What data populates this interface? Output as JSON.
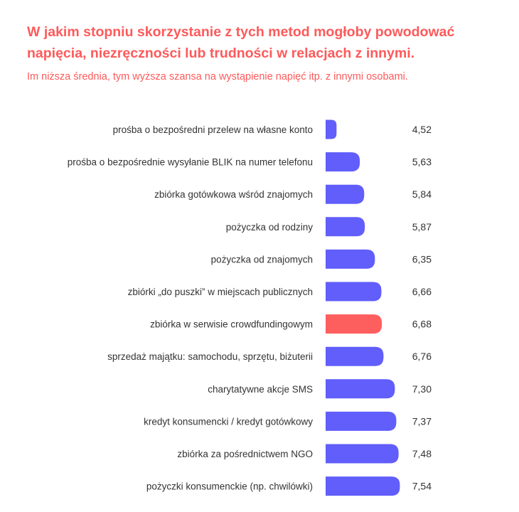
{
  "chart_data": {
    "type": "bar",
    "orientation": "horizontal",
    "title": "W jakim stopniu skorzystanie z tych metod mogłoby powodować napięcia, niezręczności lub trudności w relacjach z innymi.",
    "subtitle": "Im niższa średnia, tym wyższa szansa na wystąpienie napięć itp. z innymi osobami.",
    "xlim": [
      4,
      8
    ],
    "categories": [
      "prośba o bezpośredni przelew na własne konto",
      "prośba o bezpośrednie wysyłanie BLIK na numer telefonu",
      "zbiórka gotówkowa wśród znajomych",
      "pożyczka od rodziny",
      "pożyczka od znajomych",
      "zbiórki „do puszki” w miejscach publicznych",
      "zbiórka w serwisie crowdfundingowym",
      "sprzedaż majątku: samochodu, sprzętu, biżuterii",
      "charytatywne akcje SMS",
      "kredyt konsumencki / kredyt gotówkowy",
      "zbiórka za pośrednictwem NGO",
      "pożyczki konsumenckie (np. chwilówki)"
    ],
    "values": [
      4.52,
      5.63,
      5.84,
      5.87,
      6.35,
      6.66,
      6.68,
      6.76,
      7.3,
      7.37,
      7.48,
      7.54
    ],
    "value_labels": [
      "4,52",
      "5,63",
      "5,84",
      "5,87",
      "6,35",
      "6,66",
      "6,68",
      "6,76",
      "7,30",
      "7,37",
      "7,48",
      "7,54"
    ],
    "highlight_index": 6,
    "colors": {
      "bar": "#615efc",
      "highlight": "#fd5f5f",
      "title": "#fd5a5b"
    }
  }
}
